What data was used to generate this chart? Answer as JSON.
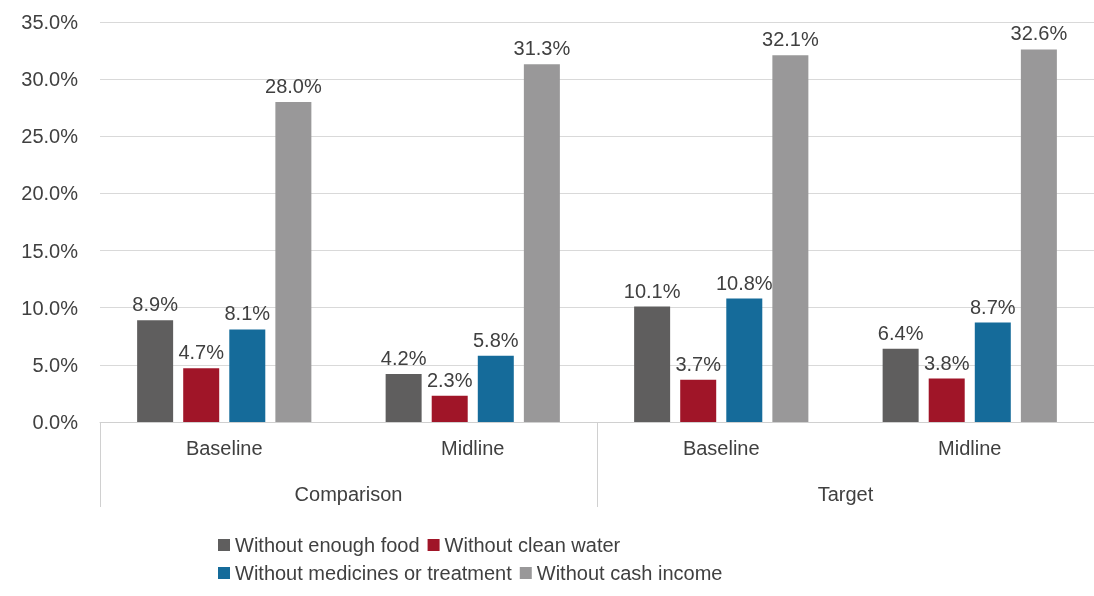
{
  "chart_data": {
    "type": "bar",
    "categories": [
      "Baseline",
      "Midline",
      "Baseline",
      "Midline"
    ],
    "annotations": [
      "Comparison",
      "Target"
    ],
    "series": [
      {
        "name": "Without enough food",
        "color": "#5f5e5e",
        "values": [
          8.9,
          4.2,
          10.1,
          6.4
        ],
        "value_labels": [
          "8.9%",
          "4.2%",
          "10.1%",
          "6.4%"
        ]
      },
      {
        "name": "Without clean water",
        "color": "#a01528",
        "values": [
          4.7,
          2.3,
          3.7,
          3.8
        ],
        "value_labels": [
          "4.7%",
          "2.3%",
          "3.7%",
          "3.8%"
        ]
      },
      {
        "name": "Without medicines or treatment",
        "color": "#156b9a",
        "values": [
          8.1,
          5.8,
          10.8,
          8.7
        ],
        "value_labels": [
          "8.1%",
          "5.8%",
          "10.8%",
          "8.7%"
        ]
      },
      {
        "name": "Without cash income",
        "color": "#999899",
        "values": [
          28.0,
          31.3,
          32.1,
          32.6
        ],
        "value_labels": [
          "28.0%",
          "31.3%",
          "32.1%",
          "32.6%"
        ]
      }
    ],
    "ylim": [
      0,
      35
    ],
    "yticks": [
      {
        "value": 0,
        "label": "0.0%"
      },
      {
        "value": 5,
        "label": "5.0%"
      },
      {
        "value": 10,
        "label": "10.0%"
      },
      {
        "value": 15,
        "label": "15.0%"
      },
      {
        "value": 20,
        "label": "20.0%"
      },
      {
        "value": 25,
        "label": "25.0%"
      },
      {
        "value": 30,
        "label": "30.0%"
      },
      {
        "value": 35,
        "label": "35.0%"
      }
    ],
    "grid": "y",
    "legend": "bottom"
  }
}
